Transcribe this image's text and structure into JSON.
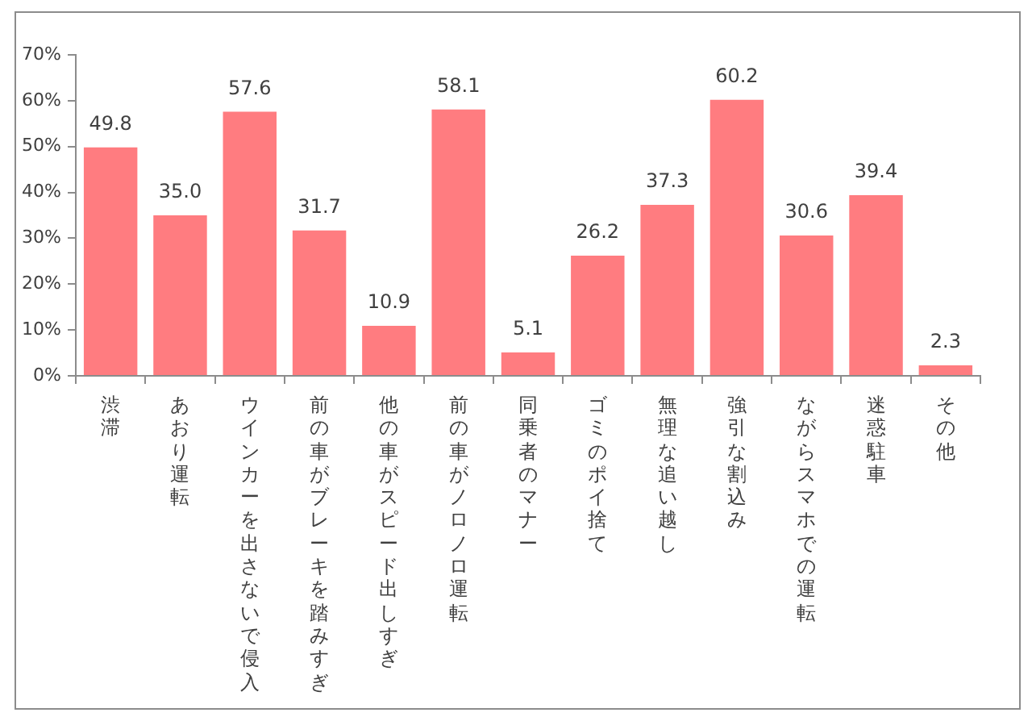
{
  "chart_data": {
    "type": "bar",
    "categories": [
      "渋滞",
      "あおり運転",
      "ウインカーを出さないで侵入",
      "前の車がブレーキを踏みすぎ",
      "他の車がスピード出しすぎ",
      "前の車がノロノロ運転",
      "同乗者のマナー",
      "ゴミのポイ捨て",
      "無理な追い越し",
      "強引な割込み",
      "ながらスマホでの運転",
      "迷惑駐車",
      "その他"
    ],
    "values": [
      49.8,
      35.0,
      57.6,
      31.7,
      10.9,
      58.1,
      5.1,
      26.2,
      37.3,
      60.2,
      30.6,
      39.4,
      2.3
    ],
    "value_labels": [
      "49.8",
      "35.0",
      "57.6",
      "31.7",
      "10.9",
      "58.1",
      "5.1",
      "26.2",
      "37.3",
      "60.2",
      "30.6",
      "39.4",
      "2.3"
    ],
    "color": "#ff7c80",
    "ylim": [
      0,
      70
    ],
    "yticks": [
      {
        "value": 0,
        "label": "0%"
      },
      {
        "value": 10,
        "label": "10%"
      },
      {
        "value": 20,
        "label": "20%"
      },
      {
        "value": 30,
        "label": "30%"
      },
      {
        "value": 40,
        "label": "40%"
      },
      {
        "value": 50,
        "label": "50%"
      },
      {
        "value": 60,
        "label": "60%"
      },
      {
        "value": 70,
        "label": "70%"
      }
    ],
    "grid": false
  }
}
